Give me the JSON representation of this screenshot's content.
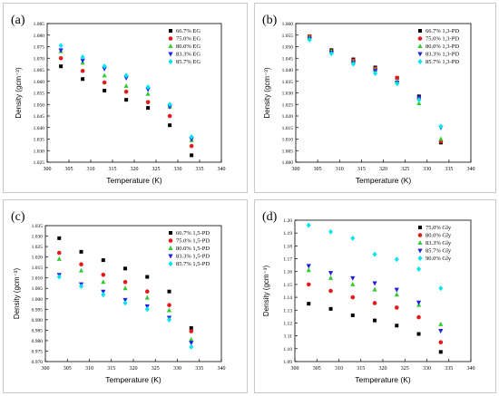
{
  "chart_data": [
    {
      "panel_label": "(a)",
      "type": "scatter",
      "xlabel": "Temperature (K)",
      "ylabel": "Density (gcm⁻³)",
      "xlim": [
        300,
        340
      ],
      "ylim": [
        1.025,
        1.085
      ],
      "xticks": [
        300,
        305,
        310,
        315,
        320,
        325,
        330,
        335,
        340
      ],
      "yticks": [
        1.025,
        1.03,
        1.035,
        1.04,
        1.045,
        1.05,
        1.055,
        1.06,
        1.065,
        1.07,
        1.075,
        1.08,
        1.085
      ],
      "ydec": 3,
      "legend": "top-right",
      "x": [
        303.15,
        308.15,
        313.15,
        318.15,
        323.15,
        328.15,
        333.15
      ],
      "series": [
        {
          "name": "66.7% EG",
          "color": "#000000",
          "marker": "square",
          "values": [
            1.0665,
            1.061,
            1.056,
            1.052,
            1.0485,
            1.041,
            1.028
          ]
        },
        {
          "name": "75.0% EG",
          "color": "#e41a1c",
          "marker": "circle",
          "values": [
            1.07,
            1.0645,
            1.0595,
            1.0555,
            1.051,
            1.045,
            1.032
          ]
        },
        {
          "name": "80.0% EG",
          "color": "#33cc33",
          "marker": "triangle-up",
          "values": [
            1.073,
            1.068,
            1.0625,
            1.058,
            1.0545,
            1.049,
            1.0345
          ]
        },
        {
          "name": "83.3% EG",
          "color": "#1f1fe6",
          "marker": "triangle-down",
          "values": [
            1.0735,
            1.069,
            1.0655,
            1.0615,
            1.0565,
            1.049,
            1.035
          ]
        },
        {
          "name": "85.7% EG",
          "color": "#00e5ee",
          "marker": "diamond",
          "values": [
            1.0755,
            1.0705,
            1.0665,
            1.0625,
            1.0575,
            1.05,
            1.036
          ]
        }
      ]
    },
    {
      "panel_label": "(b)",
      "type": "scatter",
      "xlabel": "Temperature (K)",
      "ylabel": "Density (gcm⁻³)",
      "xlim": [
        300,
        340
      ],
      "ylim": [
        1.0,
        1.06
      ],
      "xticks": [
        300,
        305,
        310,
        315,
        320,
        325,
        330,
        335,
        340
      ],
      "yticks": [
        1.0,
        1.005,
        1.01,
        1.015,
        1.02,
        1.025,
        1.03,
        1.035,
        1.04,
        1.045,
        1.05,
        1.055,
        1.06
      ],
      "ydec": 3,
      "legend": "top-right",
      "x": [
        303.15,
        308.15,
        313.15,
        318.15,
        323.15,
        328.15,
        333.15
      ],
      "series": [
        {
          "name": "66.7% 1,3-PD",
          "color": "#000000",
          "marker": "square",
          "values": [
            1.0545,
            1.0485,
            1.0445,
            1.041,
            1.0365,
            1.0285,
            1.0085
          ]
        },
        {
          "name": "75.0% 1,3-PD",
          "color": "#e41a1c",
          "marker": "circle",
          "values": [
            1.0545,
            1.048,
            1.044,
            1.0405,
            1.0365,
            1.0275,
            1.009
          ]
        },
        {
          "name": "80.0% 1,3-PD",
          "color": "#33cc33",
          "marker": "triangle-up",
          "values": [
            1.054,
            1.048,
            1.0435,
            1.04,
            1.035,
            1.0255,
            1.01
          ]
        },
        {
          "name": "83.3% 1,3-PD",
          "color": "#1f1fe6",
          "marker": "triangle-down",
          "values": [
            1.0535,
            1.0475,
            1.043,
            1.0395,
            1.0345,
            1.028,
            1.015
          ]
        },
        {
          "name": "85.7% 1,3-PD",
          "color": "#00e5ee",
          "marker": "diamond",
          "values": [
            1.053,
            1.047,
            1.0425,
            1.0385,
            1.034,
            1.027,
            1.0155
          ]
        }
      ]
    },
    {
      "panel_label": "(c)",
      "type": "scatter",
      "xlabel": "Temperature (K)",
      "ylabel": "Density (gcm⁻³)",
      "xlim": [
        300,
        340
      ],
      "ylim": [
        0.97,
        1.035
      ],
      "xticks": [
        300,
        305,
        310,
        315,
        320,
        325,
        330,
        335,
        340
      ],
      "yticks": [
        0.97,
        0.975,
        0.98,
        0.985,
        0.99,
        0.995,
        1.0,
        1.005,
        1.01,
        1.015,
        1.02,
        1.025,
        1.03,
        1.035
      ],
      "ydec": 3,
      "legend": "top-right",
      "x": [
        303.15,
        308.15,
        313.15,
        318.15,
        323.15,
        328.15,
        333.15
      ],
      "series": [
        {
          "name": "66.7% 1,5-PD",
          "color": "#000000",
          "marker": "square",
          "values": [
            1.029,
            1.0225,
            1.0185,
            1.0145,
            1.0105,
            1.0035,
            0.986
          ]
        },
        {
          "name": "75.0% 1,5-PD",
          "color": "#e41a1c",
          "marker": "circle",
          "values": [
            1.022,
            1.0165,
            1.0115,
            1.008,
            1.0035,
            0.997,
            0.9845
          ]
        },
        {
          "name": "80.0% 1,5-PD",
          "color": "#33cc33",
          "marker": "triangle-up",
          "values": [
            1.019,
            1.0135,
            1.008,
            1.005,
            1.0005,
            0.9945,
            0.9805
          ]
        },
        {
          "name": "83.3% 1,5-PD",
          "color": "#1f1fe6",
          "marker": "triangle-down",
          "values": [
            1.0115,
            1.007,
            1.0035,
            0.9995,
            0.9965,
            0.991,
            0.979
          ]
        },
        {
          "name": "85.7% 1,5-PD",
          "color": "#00e5ee",
          "marker": "diamond",
          "values": [
            1.0105,
            1.006,
            1.002,
            0.998,
            0.995,
            0.99,
            0.977
          ]
        }
      ]
    },
    {
      "panel_label": "(d)",
      "type": "scatter",
      "xlabel": "Temperature (K)",
      "ylabel": "Density (gcm⁻³)",
      "xlim": [
        300,
        340
      ],
      "ylim": [
        1.09,
        1.2
      ],
      "xticks": [
        300,
        305,
        310,
        315,
        320,
        325,
        330,
        335,
        340
      ],
      "yticks": [
        1.09,
        1.1,
        1.11,
        1.12,
        1.13,
        1.14,
        1.15,
        1.16,
        1.17,
        1.18,
        1.19,
        1.2
      ],
      "ydec": 2,
      "legend": "top-right",
      "x": [
        303.15,
        308.15,
        313.15,
        318.15,
        323.15,
        328.15,
        333.15
      ],
      "series": [
        {
          "name": "75.0% Gly",
          "color": "#000000",
          "marker": "square",
          "values": [
            1.135,
            1.131,
            1.126,
            1.122,
            1.118,
            1.1115,
            1.0975
          ]
        },
        {
          "name": "80.0% Gly",
          "color": "#e41a1c",
          "marker": "circle",
          "values": [
            1.15,
            1.145,
            1.14,
            1.1355,
            1.132,
            1.1245,
            1.105
          ]
        },
        {
          "name": "83.3% Gly",
          "color": "#33cc33",
          "marker": "triangle-up",
          "values": [
            1.161,
            1.155,
            1.15,
            1.146,
            1.142,
            1.134,
            1.119
          ]
        },
        {
          "name": "85.7% Gly",
          "color": "#1f1fe6",
          "marker": "triangle-down",
          "values": [
            1.1645,
            1.159,
            1.155,
            1.151,
            1.146,
            1.136,
            1.114
          ]
        },
        {
          "name": "90.0% Gly",
          "color": "#00e5ee",
          "marker": "diamond",
          "values": [
            1.196,
            1.191,
            1.186,
            1.1735,
            1.1695,
            1.162,
            1.147
          ]
        }
      ]
    }
  ]
}
